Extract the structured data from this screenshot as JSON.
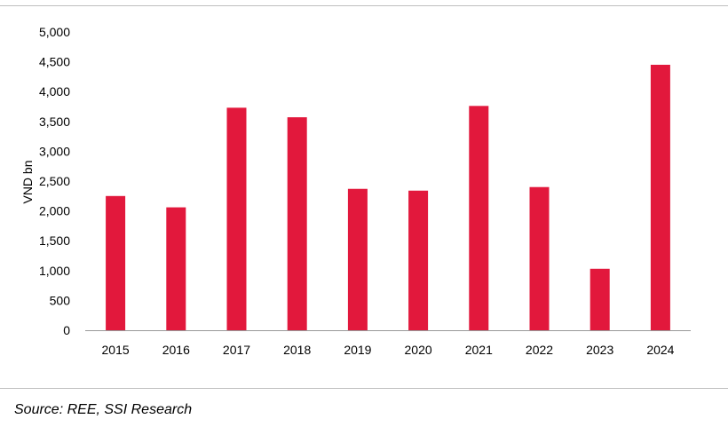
{
  "chart_data": {
    "type": "bar",
    "categories": [
      "2015",
      "2016",
      "2017",
      "2018",
      "2019",
      "2020",
      "2021",
      "2022",
      "2023",
      "2024"
    ],
    "series": [
      {
        "values": [
          2250,
          2060,
          3730,
          3570,
          2370,
          2340,
          3760,
          2400,
          1030,
          4450
        ]
      }
    ],
    "ylabel": "VND bn",
    "xlabel": "",
    "ylim": [
      0,
      5000
    ],
    "yticks": [
      0,
      500,
      1000,
      1500,
      2000,
      2500,
      3000,
      3500,
      4000,
      4500,
      5000
    ],
    "ytick_labels": [
      "0",
      "500",
      "1,000",
      "1,500",
      "2,000",
      "2,500",
      "3,000",
      "3,500",
      "4,000",
      "4,500",
      "5,000"
    ],
    "grid": false,
    "legend": "none",
    "bar_color": "#e2183c"
  },
  "source": "Source: REE, SSI Research"
}
